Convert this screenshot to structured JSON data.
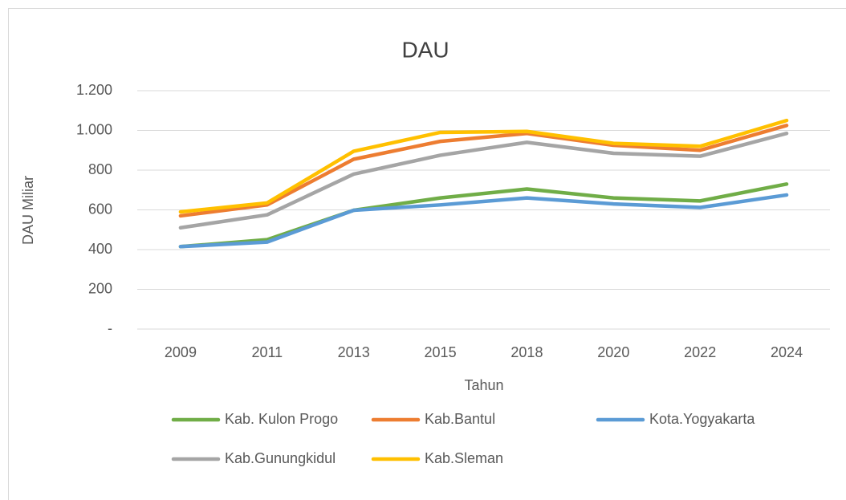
{
  "chart_data": {
    "type": "line",
    "title": "DAU",
    "x_label": "Tahun",
    "y_label": "DAU Miliar",
    "categories": [
      "2009",
      "2011",
      "2013",
      "2015",
      "2018",
      "2020",
      "2022",
      "2024"
    ],
    "series": [
      {
        "name": "Kab. Kulon Progo",
        "color": "#70ad47",
        "values": [
          415,
          450,
          598,
          660,
          705,
          660,
          645,
          730
        ]
      },
      {
        "name": "Kab.Bantul",
        "color": "#ed7d31",
        "values": [
          570,
          625,
          855,
          945,
          985,
          925,
          900,
          1025
        ]
      },
      {
        "name": "Kota.Yogyakarta",
        "color": "#5b9bd5",
        "values": [
          415,
          438,
          598,
          625,
          660,
          630,
          612,
          675
        ]
      },
      {
        "name": "Kab.Gunungkidul",
        "color": "#a5a5a5",
        "values": [
          510,
          575,
          780,
          875,
          940,
          885,
          870,
          985
        ]
      },
      {
        "name": "Kab.Sleman",
        "color": "#ffc000",
        "values": [
          590,
          635,
          895,
          990,
          995,
          935,
          920,
          1050
        ]
      }
    ],
    "ylim": [
      0,
      1200
    ],
    "yticks": [
      {
        "value": 0,
        "label": "-"
      },
      200,
      400,
      600,
      800,
      {
        "value": 1000,
        "label": "1.000"
      },
      {
        "value": 1200,
        "label": "1.200"
      }
    ],
    "grid": true,
    "legend": "bottom"
  }
}
